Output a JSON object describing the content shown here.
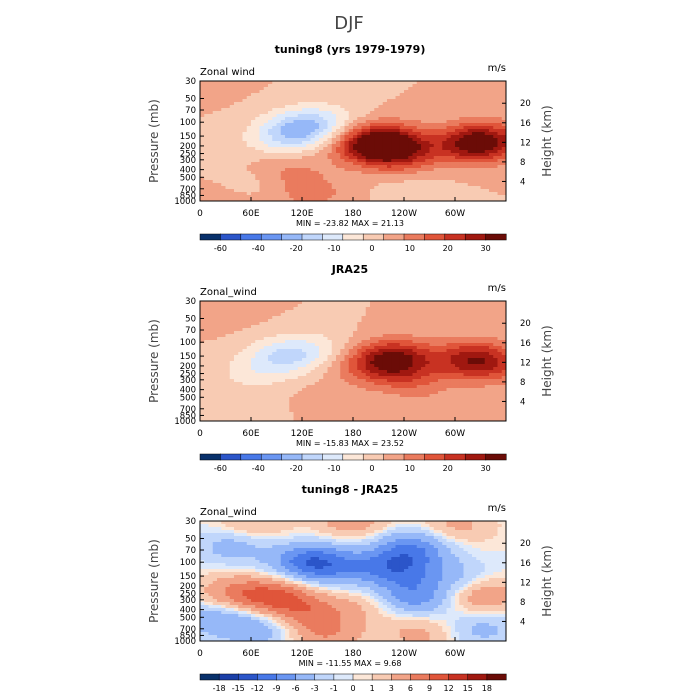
{
  "suptitle": "DJF",
  "chart_data": [
    {
      "type": "heatmap",
      "title": "tuning8 (yrs 1979-1979)",
      "variable_label": "Zonal wind",
      "units_label": "m/s",
      "ylabel_left": "Pressure (mb)",
      "ylabel_right": "Height (km)",
      "x_ticks": [
        "0",
        "60E",
        "120E",
        "180",
        "120W",
        "60W"
      ],
      "x_tick_values": [
        0,
        60,
        120,
        180,
        240,
        300
      ],
      "xlim": [
        0,
        360
      ],
      "y_ticks": [
        "30",
        "50",
        "70",
        "100",
        "150",
        "200",
        "250",
        "300",
        "400",
        "500",
        "700",
        "850",
        "1000"
      ],
      "y_tick_values": [
        30,
        50,
        70,
        100,
        150,
        200,
        250,
        300,
        400,
        500,
        700,
        850,
        1000
      ],
      "ylim": [
        1000,
        30
      ],
      "height_ticks": [
        "4",
        "8",
        "12",
        "16",
        "20"
      ],
      "height_tick_values": [
        4,
        8,
        12,
        16,
        20
      ],
      "stats_text": "MIN = -23.82   MAX =  21.13",
      "min": -23.82,
      "max": 21.13,
      "colorbar_levels": [
        "-60",
        "-40",
        "-20",
        "-10",
        "0",
        "10",
        "20",
        "30"
      ],
      "colorbar_level_values": [
        -60,
        -40,
        -20,
        -10,
        0,
        10,
        20,
        30
      ],
      "colors": [
        "#08306b",
        "#2b55c9",
        "#4878e8",
        "#6a96f2",
        "#96b8f8",
        "#c0d6fb",
        "#dde9fb",
        "#fce7d8",
        "#f8cbb3",
        "#f2a488",
        "#ea7b5e",
        "#e0553a",
        "#c83222",
        "#a01810",
        "#6b0c07"
      ],
      "bins": [
        -70,
        -60,
        -50,
        -40,
        -30,
        -20,
        -15,
        -10,
        -5,
        0,
        5,
        10,
        15,
        20,
        25,
        30,
        35
      ],
      "features": [
        {
          "x": 0,
          "p": 30,
          "v": 2
        },
        {
          "x": 120,
          "p": 120,
          "v": -18
        },
        {
          "x": 90,
          "p": 170,
          "v": -8
        },
        {
          "x": 150,
          "p": 90,
          "v": -6
        },
        {
          "x": 200,
          "p": 200,
          "v": 18
        },
        {
          "x": 220,
          "p": 180,
          "v": 21
        },
        {
          "x": 240,
          "p": 260,
          "v": 12
        },
        {
          "x": 320,
          "p": 190,
          "v": 20
        },
        {
          "x": 340,
          "p": 170,
          "v": 14
        },
        {
          "x": 100,
          "p": 400,
          "v": 6
        },
        {
          "x": 60,
          "p": 600,
          "v": -4
        },
        {
          "x": 130,
          "p": 800,
          "v": 7
        },
        {
          "x": 250,
          "p": 750,
          "v": -3
        },
        {
          "x": 30,
          "p": 900,
          "v": 3
        }
      ]
    },
    {
      "type": "heatmap",
      "title": "JRA25",
      "variable_label": "Zonal_wind",
      "units_label": "m/s",
      "ylabel_left": "Pressure (mb)",
      "ylabel_right": "Height (km)",
      "x_ticks": [
        "0",
        "60E",
        "120E",
        "180",
        "120W",
        "60W"
      ],
      "x_tick_values": [
        0,
        60,
        120,
        180,
        240,
        300
      ],
      "xlim": [
        0,
        360
      ],
      "y_ticks": [
        "30",
        "50",
        "70",
        "100",
        "150",
        "200",
        "250",
        "300",
        "400",
        "500",
        "700",
        "850",
        "1000"
      ],
      "y_tick_values": [
        30,
        50,
        70,
        100,
        150,
        200,
        250,
        300,
        400,
        500,
        700,
        850,
        1000
      ],
      "ylim": [
        1000,
        30
      ],
      "height_ticks": [
        "4",
        "8",
        "12",
        "16",
        "20"
      ],
      "height_tick_values": [
        4,
        8,
        12,
        16,
        20
      ],
      "stats_text": "MIN = -15.83   MAX =  23.52",
      "min": -15.83,
      "max": 23.52,
      "colorbar_levels": [
        "-60",
        "-40",
        "-20",
        "-10",
        "0",
        "10",
        "20",
        "30"
      ],
      "colorbar_level_values": [
        -60,
        -40,
        -20,
        -10,
        0,
        10,
        20,
        30
      ],
      "colors": [
        "#08306b",
        "#2b55c9",
        "#4878e8",
        "#6a96f2",
        "#96b8f8",
        "#c0d6fb",
        "#dde9fb",
        "#fce7d8",
        "#f8cbb3",
        "#f2a488",
        "#ea7b5e",
        "#e0553a",
        "#c83222",
        "#a01810",
        "#6b0c07"
      ],
      "bins": [
        -70,
        -60,
        -50,
        -40,
        -30,
        -20,
        -15,
        -10,
        -5,
        0,
        5,
        10,
        15,
        20,
        25,
        30,
        35
      ],
      "features": [
        {
          "x": 100,
          "p": 150,
          "v": -14
        },
        {
          "x": 60,
          "p": 250,
          "v": -6
        },
        {
          "x": 140,
          "p": 120,
          "v": -6
        },
        {
          "x": 230,
          "p": 160,
          "v": 23
        },
        {
          "x": 200,
          "p": 200,
          "v": 10
        },
        {
          "x": 250,
          "p": 300,
          "v": 8
        },
        {
          "x": 320,
          "p": 160,
          "v": 18
        },
        {
          "x": 340,
          "p": 200,
          "v": 10
        },
        {
          "x": 20,
          "p": 40,
          "v": 3
        },
        {
          "x": 150,
          "p": 600,
          "v": 3
        },
        {
          "x": 60,
          "p": 800,
          "v": -3
        },
        {
          "x": 280,
          "p": 800,
          "v": 3
        }
      ]
    },
    {
      "type": "heatmap",
      "title": "tuning8 - JRA25",
      "variable_label": "Zonal_wind",
      "units_label": "m/s",
      "ylabel_left": "Pressure (mb)",
      "ylabel_right": "Height (km)",
      "x_ticks": [
        "0",
        "60E",
        "120E",
        "180",
        "120W",
        "60W"
      ],
      "x_tick_values": [
        0,
        60,
        120,
        180,
        240,
        300
      ],
      "xlim": [
        0,
        360
      ],
      "y_ticks": [
        "30",
        "50",
        "70",
        "100",
        "150",
        "200",
        "250",
        "300",
        "400",
        "500",
        "700",
        "850",
        "1000"
      ],
      "y_tick_values": [
        30,
        50,
        70,
        100,
        150,
        200,
        250,
        300,
        400,
        500,
        700,
        850,
        1000
      ],
      "ylim": [
        1000,
        30
      ],
      "height_ticks": [
        "4",
        "8",
        "12",
        "16",
        "20"
      ],
      "height_tick_values": [
        4,
        8,
        12,
        16,
        20
      ],
      "stats_text": "MIN = -11.55   MAX =    9.68",
      "min": -11.55,
      "max": 9.68,
      "colorbar_levels": [
        "-18",
        "-15",
        "-12",
        "-9",
        "-6",
        "-3",
        "-1",
        "0",
        "1",
        "3",
        "6",
        "9",
        "12",
        "15",
        "18"
      ],
      "colorbar_level_values": [
        -18,
        -15,
        -12,
        -9,
        -6,
        -3,
        -1,
        0,
        1,
        3,
        6,
        9,
        12,
        15,
        18
      ],
      "colors": [
        "#08306b",
        "#1a3fa8",
        "#2b55c9",
        "#4878e8",
        "#6a96f2",
        "#96b8f8",
        "#c0d6fb",
        "#dde9fb",
        "#fce7d8",
        "#f8cbb3",
        "#f2a488",
        "#ea7b5e",
        "#e0553a",
        "#c83222",
        "#a01810",
        "#6b0c07"
      ],
      "bins": [
        -21,
        -18,
        -15,
        -12,
        -9,
        -6,
        -3,
        -1,
        0,
        1,
        3,
        6,
        9,
        12,
        15,
        18,
        21
      ],
      "features": [
        {
          "x": 180,
          "p": 30,
          "v": 5
        },
        {
          "x": 60,
          "p": 35,
          "v": 4
        },
        {
          "x": 300,
          "p": 35,
          "v": 4
        },
        {
          "x": 40,
          "p": 60,
          "v": -5
        },
        {
          "x": 250,
          "p": 65,
          "v": -8
        },
        {
          "x": 130,
          "p": 100,
          "v": -11
        },
        {
          "x": 230,
          "p": 120,
          "v": -9
        },
        {
          "x": 170,
          "p": 120,
          "v": -4
        },
        {
          "x": 300,
          "p": 160,
          "v": -4
        },
        {
          "x": 40,
          "p": 250,
          "v": 6
        },
        {
          "x": 90,
          "p": 280,
          "v": 9
        },
        {
          "x": 130,
          "p": 450,
          "v": 6
        },
        {
          "x": 250,
          "p": 280,
          "v": -8
        },
        {
          "x": 330,
          "p": 260,
          "v": 6
        },
        {
          "x": 200,
          "p": 350,
          "v": 3
        },
        {
          "x": 20,
          "p": 500,
          "v": -5
        },
        {
          "x": 70,
          "p": 700,
          "v": -5
        },
        {
          "x": 150,
          "p": 850,
          "v": 5
        },
        {
          "x": 330,
          "p": 700,
          "v": -4
        },
        {
          "x": 260,
          "p": 800,
          "v": 4
        }
      ]
    }
  ]
}
